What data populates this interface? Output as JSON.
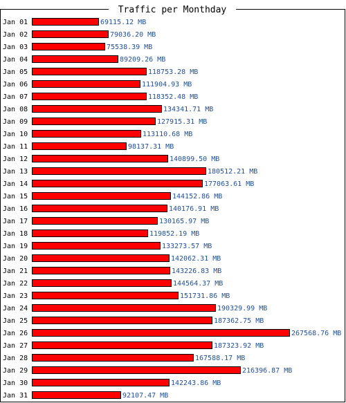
{
  "chart_data": {
    "type": "bar",
    "orientation": "horizontal",
    "title": "Traffic per Monthday",
    "unit": "MB",
    "categories": [
      "Jan 01",
      "Jan 02",
      "Jan 03",
      "Jan 04",
      "Jan 05",
      "Jan 06",
      "Jan 07",
      "Jan 08",
      "Jan 09",
      "Jan 10",
      "Jan 11",
      "Jan 12",
      "Jan 13",
      "Jan 14",
      "Jan 15",
      "Jan 16",
      "Jan 17",
      "Jan 18",
      "Jan 19",
      "Jan 20",
      "Jan 21",
      "Jan 22",
      "Jan 23",
      "Jan 24",
      "Jan 25",
      "Jan 26",
      "Jan 27",
      "Jan 28",
      "Jan 29",
      "Jan 30",
      "Jan 31"
    ],
    "values": [
      69115.12,
      79036.2,
      75538.39,
      89209.26,
      118753.28,
      111904.93,
      118352.48,
      134341.71,
      127915.31,
      113110.68,
      98137.31,
      140899.5,
      180512.21,
      177063.61,
      144152.86,
      140176.91,
      130165.97,
      119852.19,
      133273.57,
      142062.31,
      143226.83,
      144564.37,
      151731.86,
      190329.99,
      187362.75,
      267568.76,
      187323.92,
      167588.17,
      216396.87,
      142243.86,
      92107.47
    ],
    "labels": [
      "69115.12 MB",
      "79036.20 MB",
      "75538.39 MB",
      "89209.26 MB",
      "118753.28 MB",
      "111904.93 MB",
      "118352.48 MB",
      "134341.71 MB",
      "127915.31 MB",
      "113110.68 MB",
      "98137.31 MB",
      "140899.50 MB",
      "180512.21 MB",
      "177063.61 MB",
      "144152.86 MB",
      "140176.91 MB",
      "130165.97 MB",
      "119852.19 MB",
      "133273.57 MB",
      "142062.31 MB",
      "143226.83 MB",
      "144564.37 MB",
      "151731.86 MB",
      "190329.99 MB",
      "187362.75 MB",
      "267568.76 MB",
      "187323.92 MB",
      "167588.17 MB",
      "216396.87 MB",
      "142243.86 MB",
      "92107.47 MB"
    ],
    "bar_color": "#ff0000",
    "label_color": "#1f4f9a",
    "grid": false,
    "legend": "none"
  }
}
